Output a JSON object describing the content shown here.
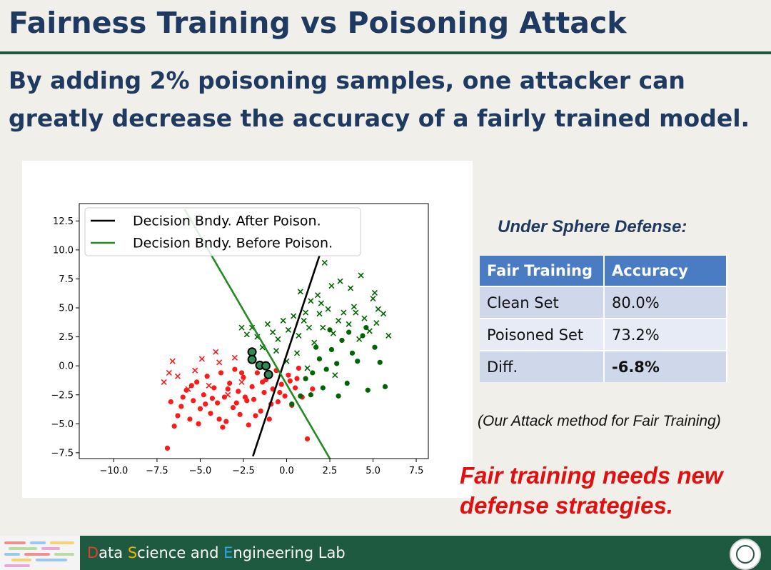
{
  "slide": {
    "title": "Fairness Training vs Poisoning Attack",
    "subtitle": "By adding 2% poisoning samples, one attacker can greatly decrease the accuracy of a fairly trained model."
  },
  "defense": {
    "heading": "Under Sphere Defense:",
    "table": {
      "headers": [
        "Fair Training",
        "Accuracy"
      ],
      "rows": [
        [
          "Clean Set",
          "80.0%"
        ],
        [
          "Poisoned Set",
          "73.2%"
        ],
        [
          "Diff.",
          "-6.8%"
        ]
      ]
    },
    "note": "(Our Attack method for Fair Training)"
  },
  "conclusion": "Fair training needs new defense strategies.",
  "footer": {
    "lab_d": "D",
    "lab_1": "ata ",
    "lab_s": "S",
    "lab_2": "cience and ",
    "lab_e": "E",
    "lab_3": "ngineering Lab"
  },
  "colors": {
    "title": "#1f3a60",
    "accent_green": "#1e5a40",
    "table_header": "#4a7cc4",
    "red_points": "#ff1a1a",
    "green_points": "#006400",
    "poison_fill": "#2e8b57",
    "conclusion": "#e01010"
  },
  "chart_data": {
    "type": "scatter",
    "xlim": [
      -12,
      8.2
    ],
    "ylim": [
      -8.0,
      14.0
    ],
    "x_ticks": [
      -10.0,
      -7.5,
      -5.0,
      -2.5,
      0.0,
      2.5,
      5.0,
      7.5
    ],
    "y_ticks": [
      -7.5,
      -5.0,
      -2.5,
      0.0,
      2.5,
      5.0,
      7.5,
      10.0,
      12.5
    ],
    "x_tick_labels": [
      "−10.0",
      "−7.5",
      "−5.0",
      "−2.5",
      "0.0",
      "2.5",
      "5.0",
      "7.5"
    ],
    "y_tick_labels": [
      "−7.5",
      "−5.0",
      "−2.5",
      "0.0",
      "2.5",
      "5.0",
      "7.5",
      "10.0",
      "12.5"
    ],
    "legend_position": "top-left",
    "lines": [
      {
        "name": "Decision Bndy. After Poison.",
        "color": "#000000",
        "points": [
          [
            -1.95,
            -7.8
          ],
          [
            1.9,
            9.5
          ]
        ]
      },
      {
        "name": "Decision Bndy. Before Poison.",
        "color": "#228b22",
        "points": [
          [
            -5.9,
            13.5
          ],
          [
            2.5,
            -8.0
          ]
        ]
      }
    ],
    "poison_points": [
      [
        -2.0,
        1.2
      ],
      [
        -2.0,
        0.55
      ],
      [
        -1.55,
        0.05
      ],
      [
        -1.2,
        0.0
      ],
      [
        -1.05,
        -0.75
      ]
    ],
    "red_dots": [
      [
        -6.9,
        -7.1
      ],
      [
        -6.5,
        -5.2
      ],
      [
        -6.3,
        -4.3
      ],
      [
        -6.1,
        -3.5
      ],
      [
        -5.8,
        -2.1
      ],
      [
        -5.6,
        -4.6
      ],
      [
        -5.4,
        -3.0
      ],
      [
        -5.2,
        -1.4
      ],
      [
        -5.0,
        -3.7
      ],
      [
        -4.8,
        -2.5
      ],
      [
        -4.6,
        -0.9
      ],
      [
        -4.4,
        -4.1
      ],
      [
        -4.2,
        -1.9
      ],
      [
        -4.0,
        -3.2
      ],
      [
        -3.8,
        -0.6
      ],
      [
        -3.6,
        -2.7
      ],
      [
        -3.5,
        -4.8
      ],
      [
        -3.3,
        -1.5
      ],
      [
        -3.1,
        -3.6
      ],
      [
        -3.0,
        -0.3
      ],
      [
        -2.8,
        -2.2
      ],
      [
        -2.7,
        -4.2
      ],
      [
        -2.5,
        -1.0
      ],
      [
        -2.3,
        -3.0
      ],
      [
        -2.2,
        -5.1
      ],
      [
        -2.0,
        -1.8
      ],
      [
        -1.9,
        -2.9
      ],
      [
        -1.7,
        -0.6
      ],
      [
        -1.5,
        -3.9
      ],
      [
        -1.3,
        -2.3
      ],
      [
        -1.2,
        -1.2
      ],
      [
        -1.0,
        -4.6
      ],
      [
        -0.8,
        -2.0
      ],
      [
        -0.6,
        -0.4
      ],
      [
        -0.5,
        -3.1
      ],
      [
        -0.3,
        -1.6
      ],
      [
        -0.1,
        -2.6
      ],
      [
        0.1,
        -0.8
      ],
      [
        0.3,
        -3.4
      ],
      [
        0.5,
        -1.9
      ],
      [
        0.7,
        -0.2
      ],
      [
        0.9,
        -2.7
      ],
      [
        1.2,
        -6.3
      ],
      [
        -6.7,
        -3.1
      ],
      [
        -6.0,
        -2.7
      ],
      [
        -5.5,
        -1.7
      ],
      [
        -5.1,
        -5.0
      ],
      [
        -4.7,
        -3.3
      ],
      [
        -4.3,
        -2.8
      ],
      [
        -3.9,
        -4.6
      ],
      [
        -3.4,
        -2.0
      ],
      [
        -2.9,
        -3.2
      ],
      [
        -2.4,
        -2.7
      ],
      [
        -1.8,
        -4.3
      ],
      [
        -1.4,
        -1.4
      ],
      [
        -0.9,
        -3.3
      ],
      [
        -0.4,
        -2.3
      ],
      [
        0.2,
        -1.3
      ],
      [
        -3.7,
        -5.3
      ],
      [
        -2.6,
        -0.6
      ],
      [
        0.6,
        -1.1
      ],
      [
        1.5,
        -2.0
      ]
    ],
    "red_x": [
      [
        -7.1,
        -1.4
      ],
      [
        -6.8,
        -0.6
      ],
      [
        -6.6,
        0.4
      ],
      [
        -6.3,
        -0.9
      ],
      [
        -5.7,
        -2.0
      ],
      [
        -5.3,
        -0.4
      ],
      [
        -4.5,
        -1.7
      ],
      [
        -3.9,
        0.3
      ],
      [
        -3.4,
        -2.5
      ],
      [
        -3.0,
        0.7
      ],
      [
        -4.9,
        0.6
      ],
      [
        -2.6,
        -1.4
      ],
      [
        -4.1,
        1.2
      ]
    ],
    "green_dots": [
      [
        0.3,
        -3.3
      ],
      [
        0.8,
        -2.6
      ],
      [
        1.1,
        -1.1
      ],
      [
        1.5,
        -0.6
      ],
      [
        1.9,
        0.6
      ],
      [
        2.3,
        -0.3
      ],
      [
        2.6,
        1.4
      ],
      [
        2.9,
        0.2
      ],
      [
        3.2,
        2.2
      ],
      [
        3.5,
        -1.5
      ],
      [
        3.8,
        1.1
      ],
      [
        4.1,
        0.4
      ],
      [
        4.4,
        2.6
      ],
      [
        4.7,
        -2.1
      ],
      [
        5.1,
        1.6
      ],
      [
        5.4,
        0.3
      ],
      [
        5.7,
        -1.8
      ],
      [
        2.1,
        -1.9
      ],
      [
        3.0,
        -2.6
      ],
      [
        1.4,
        -2.5
      ],
      [
        2.5,
        3.1
      ],
      [
        3.6,
        2.9
      ],
      [
        4.6,
        3.3
      ],
      [
        1.7,
        1.6
      ]
    ],
    "green_x": [
      [
        -2.6,
        3.3
      ],
      [
        -2.3,
        2.7
      ],
      [
        -2.0,
        3.3
      ],
      [
        -1.7,
        2.5
      ],
      [
        -1.4,
        1.6
      ],
      [
        -1.1,
        3.6
      ],
      [
        -0.8,
        2.9
      ],
      [
        -0.5,
        2.3
      ],
      [
        -0.2,
        3.9
      ],
      [
        0.1,
        3.1
      ],
      [
        0.4,
        4.3
      ],
      [
        0.7,
        2.6
      ],
      [
        1.0,
        3.9
      ],
      [
        1.3,
        3.3
      ],
      [
        1.6,
        2.0
      ],
      [
        1.9,
        4.5
      ],
      [
        2.1,
        3.3
      ],
      [
        2.4,
        4.9
      ],
      [
        2.7,
        2.8
      ],
      [
        3.0,
        3.9
      ],
      [
        3.3,
        4.6
      ],
      [
        3.6,
        3.6
      ],
      [
        3.9,
        5.1
      ],
      [
        4.2,
        2.3
      ],
      [
        4.5,
        4.1
      ],
      [
        4.8,
        3.0
      ],
      [
        5.0,
        5.8
      ],
      [
        5.3,
        4.9
      ],
      [
        5.6,
        4.5
      ],
      [
        5.9,
        2.6
      ],
      [
        2.2,
        8.9
      ],
      [
        4.3,
        7.8
      ],
      [
        3.1,
        7.3
      ],
      [
        0.8,
        6.4
      ],
      [
        1.4,
        5.6
      ],
      [
        1.8,
        6.1
      ],
      [
        2.6,
        6.9
      ],
      [
        3.7,
        6.7
      ],
      [
        5.1,
        6.3
      ],
      [
        -0.6,
        1.3
      ],
      [
        0.0,
        0.4
      ],
      [
        0.6,
        1.1
      ],
      [
        1.2,
        -0.2
      ],
      [
        2.8,
        -0.8
      ],
      [
        5.2,
        3.7
      ],
      [
        4.0,
        4.6
      ],
      [
        2.0,
        5.4
      ],
      [
        1.1,
        4.6
      ]
    ],
    "legend": [
      "Decision Bndy. After Poison.",
      "Decision Bndy. Before Poison."
    ]
  }
}
